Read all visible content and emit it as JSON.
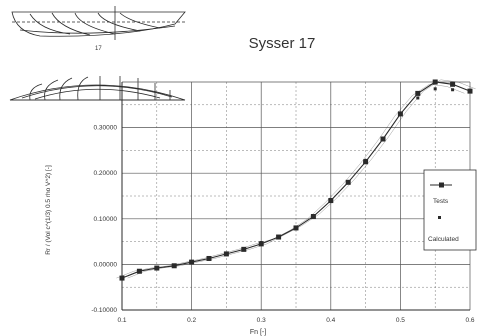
{
  "page": {
    "title": "Sysser 17",
    "hull_caption": "17"
  },
  "colors": {
    "ink": "#2a2a2a",
    "grid": "#555555",
    "paper": "#ffffff"
  },
  "chart_data": {
    "type": "line",
    "title": "Sysser 17",
    "xlabel": "Fn [-]",
    "ylabel": "Rr / (Vol c^(1/3) 0.5 rho V^2) [-]",
    "xlim": [
      0.1,
      0.6
    ],
    "ylim": [
      -0.1,
      0.4
    ],
    "x_ticks": [
      "0.1",
      "0.2",
      "0.3",
      "0.4",
      "0.5",
      "0.6"
    ],
    "y_ticks": [
      "-0.10000",
      "0.00000",
      "0.10000",
      "0.20000",
      "0.30000"
    ],
    "legend": {
      "placement": "right",
      "entries": [
        "Tests",
        "Calculated"
      ]
    },
    "grid": true,
    "series": [
      {
        "name": "Tests",
        "style": "line-with-squares",
        "x": [
          0.1,
          0.125,
          0.15,
          0.175,
          0.2,
          0.225,
          0.25,
          0.275,
          0.3,
          0.325,
          0.35,
          0.375,
          0.4,
          0.425,
          0.45,
          0.475,
          0.5,
          0.525,
          0.55,
          0.575,
          0.6
        ],
        "y": [
          -0.03,
          -0.015,
          -0.008,
          -0.003,
          0.005,
          0.013,
          0.023,
          0.033,
          0.045,
          0.06,
          0.08,
          0.105,
          0.14,
          0.18,
          0.225,
          0.275,
          0.33,
          0.375,
          0.4,
          0.395,
          0.38
        ]
      },
      {
        "name": "Calculated",
        "style": "markers",
        "x": [
          0.3,
          0.35,
          0.4,
          0.45,
          0.5,
          0.525,
          0.55,
          0.575
        ],
        "y": [
          0.048,
          0.078,
          0.142,
          0.228,
          0.33,
          0.365,
          0.385,
          0.383
        ]
      }
    ]
  }
}
